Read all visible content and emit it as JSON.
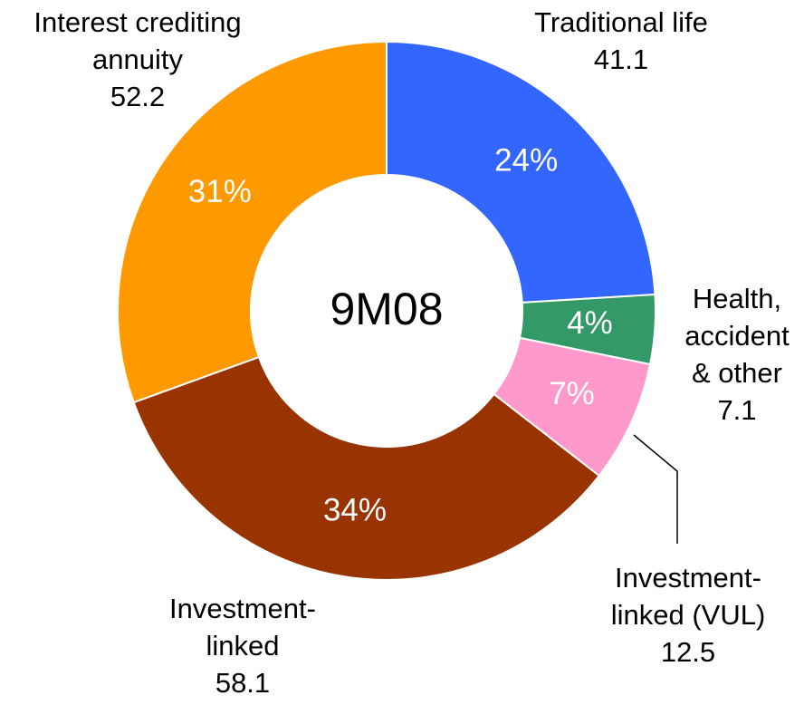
{
  "chart_data": {
    "type": "donut",
    "center_label": "9M08",
    "categories": [
      "Traditional life",
      "Health, accident & other",
      "Investment-linked (VUL)",
      "Investment-linked",
      "Interest crediting annuity"
    ],
    "values": [
      41.1,
      7.1,
      12.5,
      58.1,
      52.2
    ],
    "percent_labels": [
      "24%",
      "4%",
      "7%",
      "34%",
      "31%"
    ],
    "colors": [
      "#3366ff",
      "#339966",
      "#ff99cc",
      "#993300",
      "#ff9900"
    ]
  }
}
